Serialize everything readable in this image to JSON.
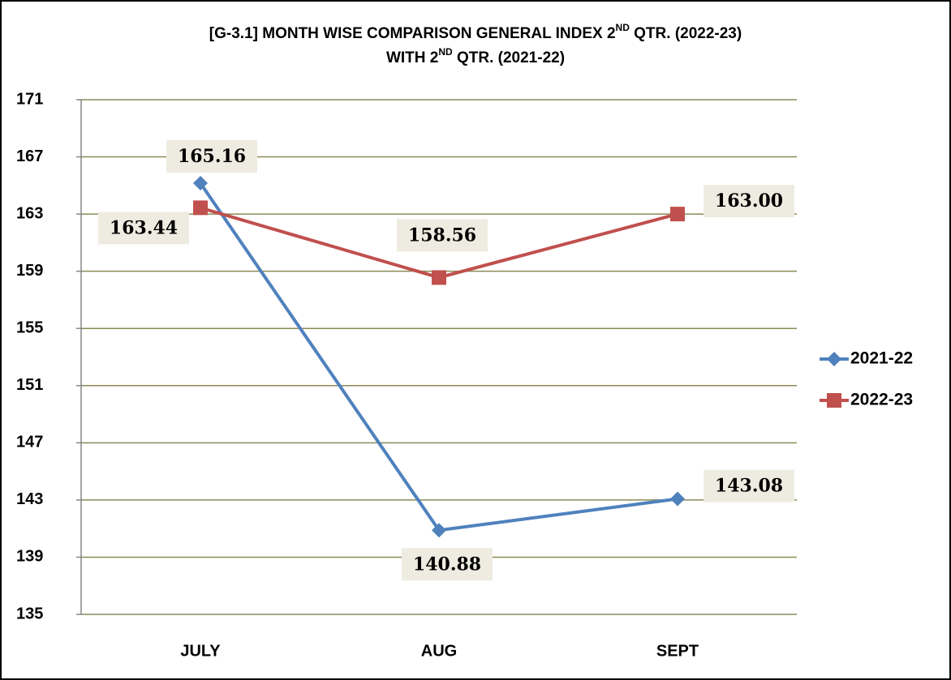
{
  "chart_data": {
    "type": "line",
    "title": [
      [
        "[G-3.1] MONTH WISE COMPARISON GENERAL INDEX  2",
        "ND",
        "  QTR. (2022-23)"
      ],
      [
        "WITH 2",
        "ND",
        " QTR. (2021-22)"
      ]
    ],
    "categories": [
      "JULY",
      "AUG",
      "SEPT"
    ],
    "series": [
      {
        "name": "2021-22",
        "color": "#4f81bd",
        "marker": "diamond",
        "values": [
          165.16,
          140.88,
          143.08
        ],
        "value_labels": [
          "165.16",
          "140.88",
          "143.08"
        ]
      },
      {
        "name": "2022-23",
        "color": "#c0504d",
        "marker": "square",
        "values": [
          163.44,
          158.56,
          163.0
        ],
        "value_labels": [
          "163.44",
          "158.56",
          "163.00"
        ]
      }
    ],
    "ylim": [
      135,
      171
    ],
    "yticks": [
      135,
      139,
      143,
      147,
      151,
      155,
      159,
      163,
      167,
      171
    ],
    "grid": true,
    "legend": "right"
  }
}
